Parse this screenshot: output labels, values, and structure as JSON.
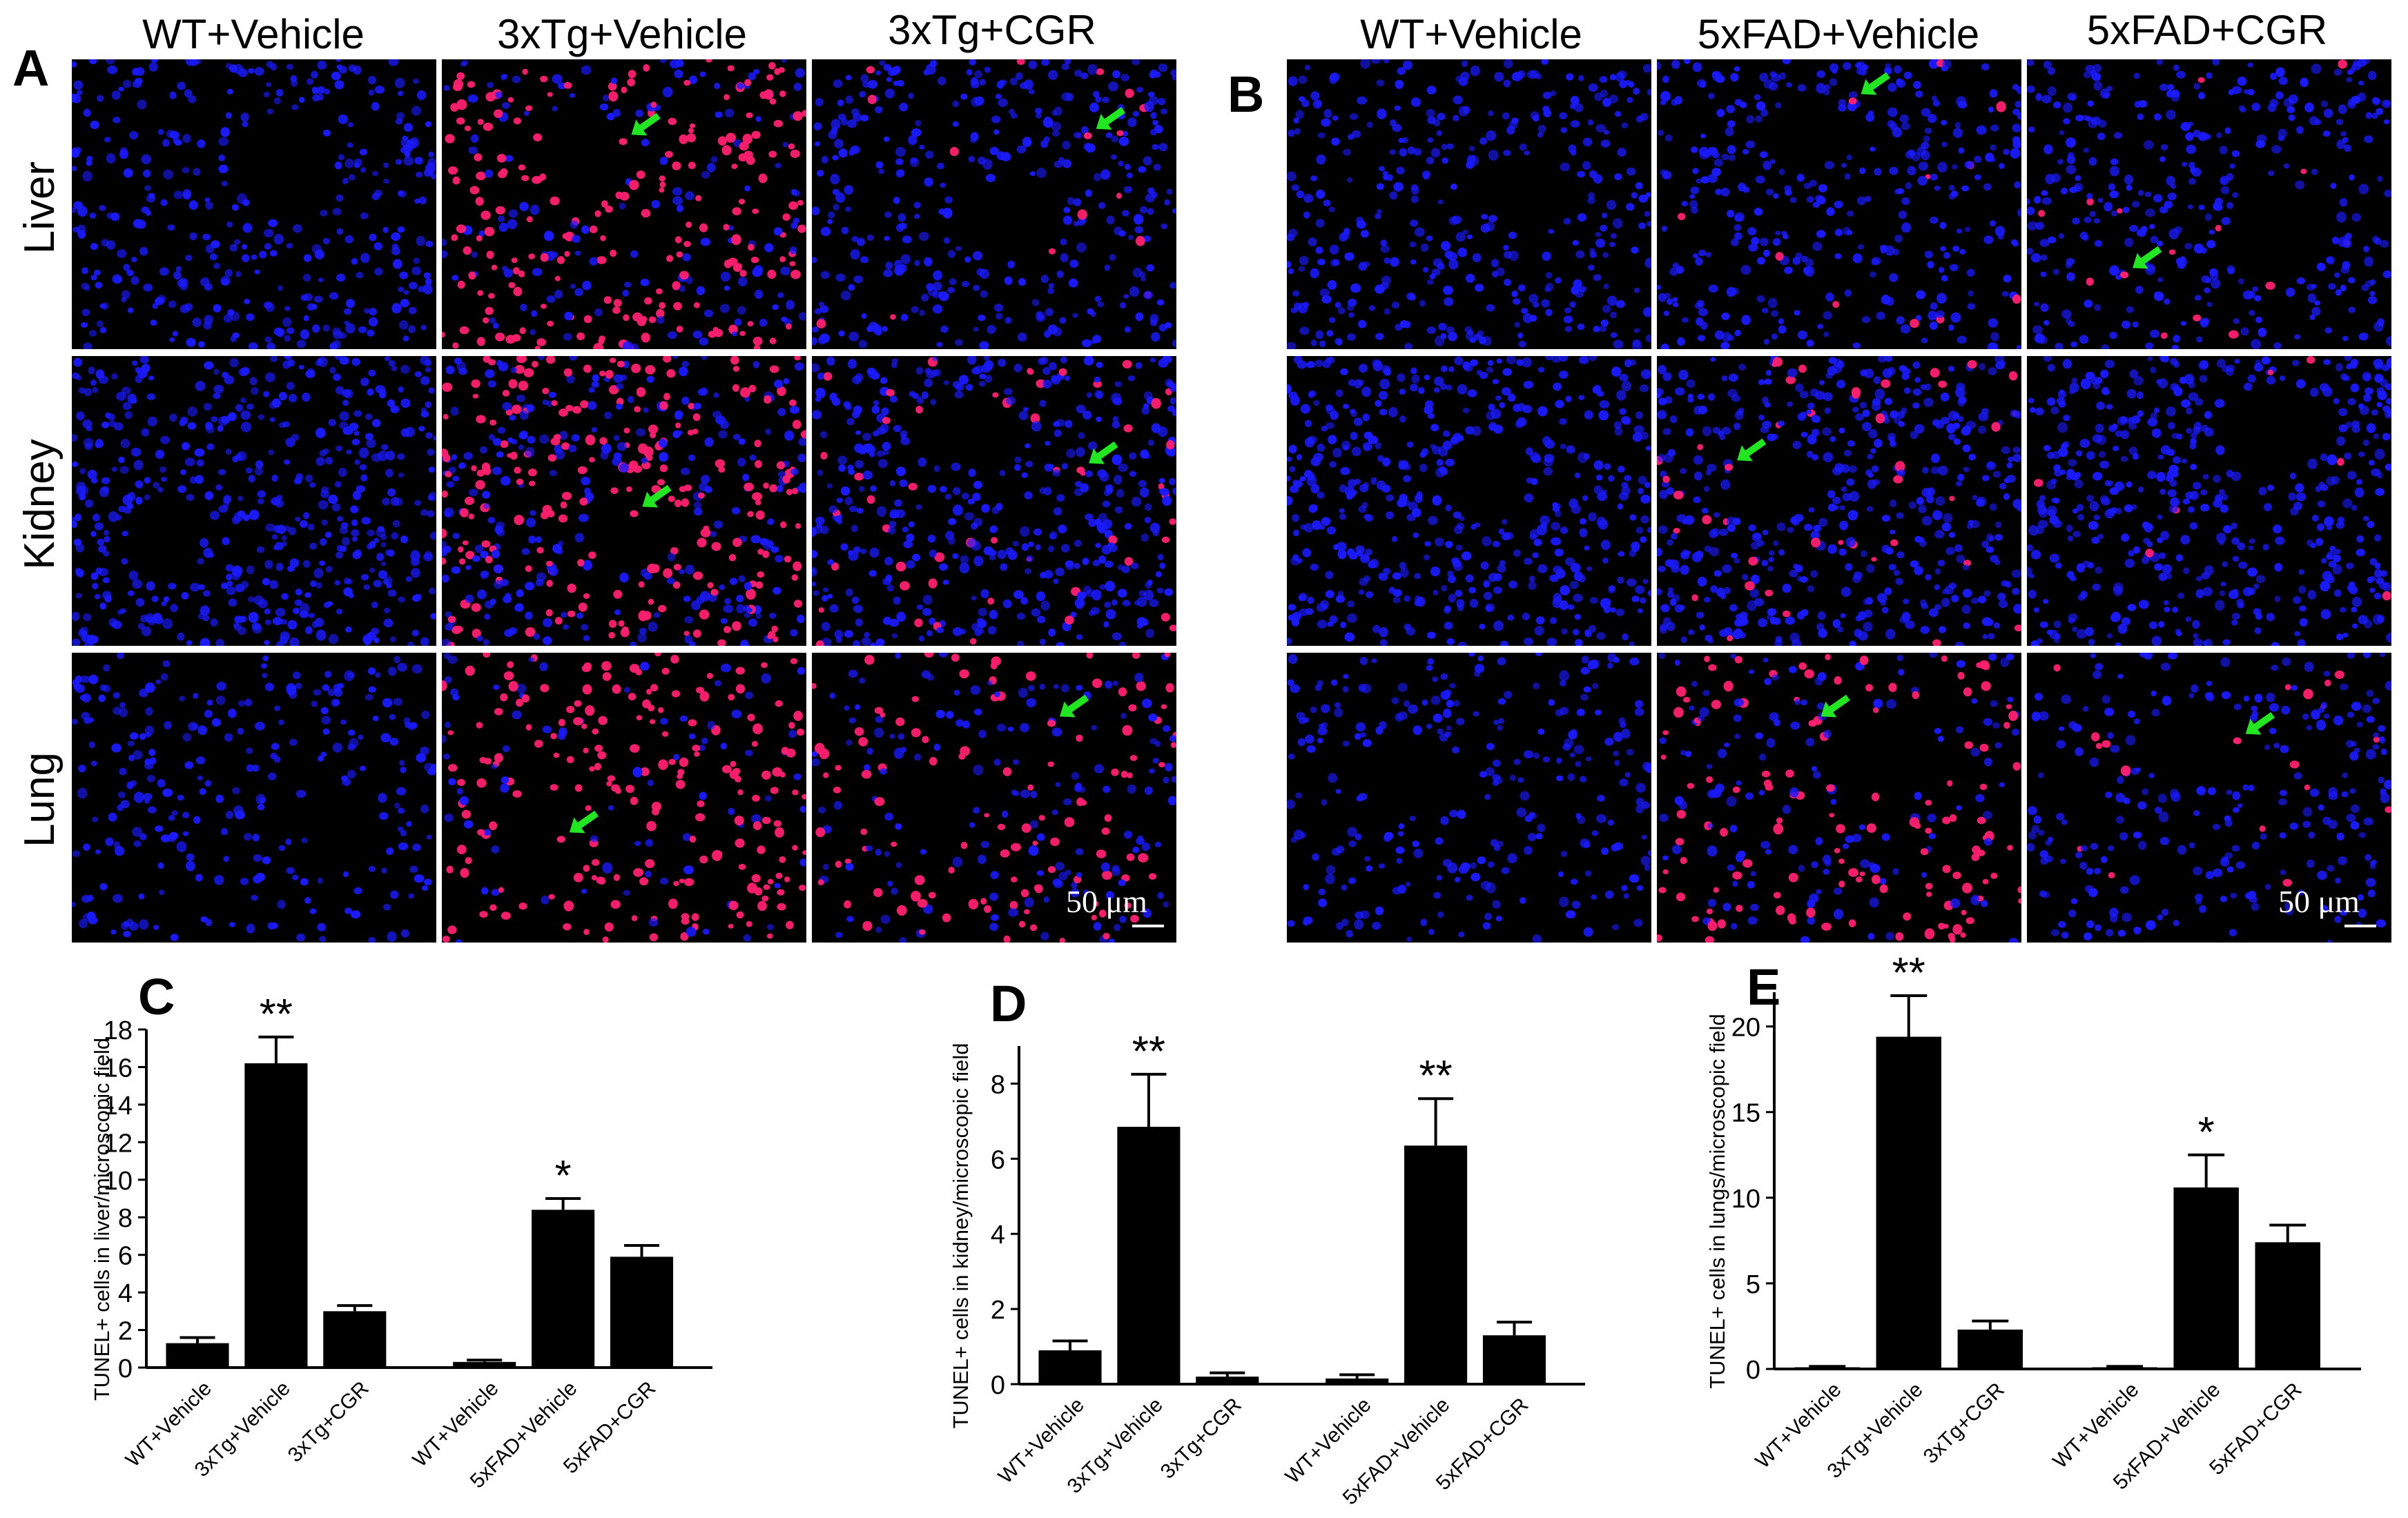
{
  "panels": {
    "A": {
      "letter": "A",
      "columns": [
        "WT+Vehicle",
        "3xTg+Vehicle",
        "3xTg+CGR"
      ],
      "rows": [
        "Liver",
        "Kidney",
        "Lung"
      ],
      "scale_bar": "50 μm"
    },
    "B": {
      "letter": "B",
      "columns": [
        "WT+Vehicle",
        "5xFAD+Vehicle",
        "5xFAD+CGR"
      ],
      "scale_bar": "50 μm"
    }
  },
  "colors": {
    "nuclei": "#1a1aff",
    "tunel": "#ff2070",
    "arrow": "#22e622",
    "background": "#000000",
    "bar": "#000000"
  },
  "chart_data": [
    {
      "panel": "C",
      "type": "bar",
      "ylabel": "TUNEL+ cells in liver/microscopic field",
      "categories": [
        "WT+Vehicle",
        "3xTg+Vehicle",
        "3xTg+CGR",
        "WT+Vehicle",
        "5xFAD+Vehicle",
        "5xFAD+CGR"
      ],
      "values": [
        1.3,
        16.2,
        3.0,
        0.3,
        8.4,
        5.9
      ],
      "errors": [
        0.3,
        1.4,
        0.3,
        0.1,
        0.6,
        0.6
      ],
      "significance": [
        "",
        "**",
        "",
        "",
        "*",
        ""
      ],
      "ylim": [
        0,
        18
      ],
      "yticks": [
        0,
        2,
        4,
        6,
        8,
        10,
        12,
        14,
        16,
        18
      ]
    },
    {
      "panel": "D",
      "type": "bar",
      "ylabel": "TUNEL+ cells in kidney/microscopic field",
      "categories": [
        "WT+Vehicle",
        "3xTg+Vehicle",
        "3xTg+CGR",
        "WT+Vehicle",
        "5xFAD+Vehicle",
        "5xFAD+CGR"
      ],
      "values": [
        0.9,
        6.85,
        0.2,
        0.15,
        6.35,
        1.3
      ],
      "errors": [
        0.25,
        1.4,
        0.1,
        0.1,
        1.25,
        0.35
      ],
      "significance": [
        "",
        "**",
        "",
        "",
        "**",
        ""
      ],
      "ylim": [
        0,
        9
      ],
      "yticks": [
        0,
        2,
        4,
        6,
        8
      ]
    },
    {
      "panel": "E",
      "type": "bar",
      "ylabel": "TUNEL+ cells in lungs/microscopic field",
      "categories": [
        "WT+Vehicle",
        "3xTg+Vehicle",
        "3xTg+CGR",
        "WT+Vehicle",
        "5xFAD+Vehicle",
        "5xFAD+CGR"
      ],
      "values": [
        0.1,
        19.4,
        2.3,
        0.1,
        10.6,
        7.4
      ],
      "errors": [
        0.05,
        2.4,
        0.5,
        0.05,
        1.9,
        1.0
      ],
      "significance": [
        "",
        "**",
        "",
        "",
        "*",
        ""
      ],
      "ylim": [
        0,
        22
      ],
      "yticks": [
        0,
        5,
        10,
        15,
        20
      ]
    }
  ]
}
